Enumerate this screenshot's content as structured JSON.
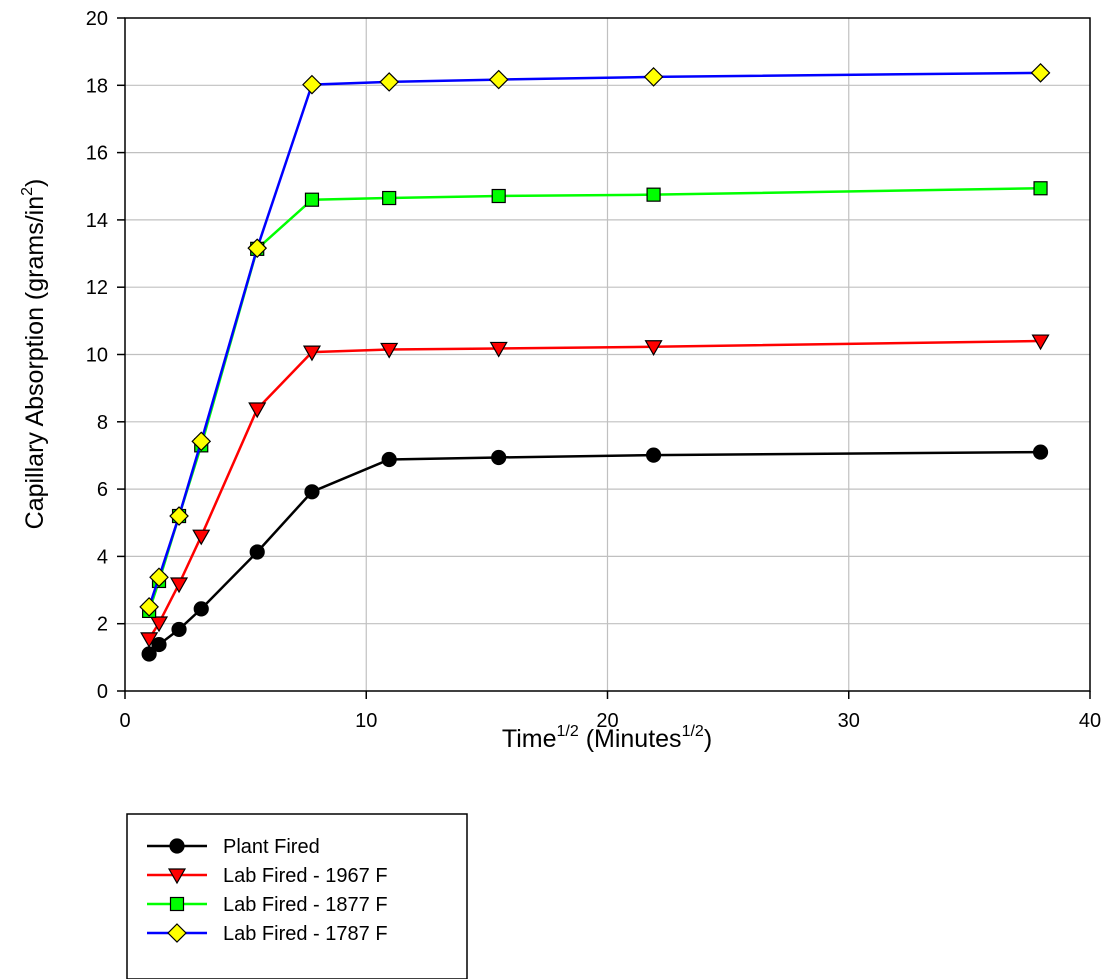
{
  "chart_data": {
    "type": "line",
    "x_axis": {
      "label_base": "Time",
      "label_exp": "1/2",
      "label_mid": " (Minutes",
      "label_exp2": "1/2",
      "label_end": ")",
      "range": [
        0,
        40
      ],
      "ticks": [
        0,
        10,
        20,
        30,
        40
      ],
      "tick_labels": [
        "0",
        "10",
        "20",
        "30",
        "40"
      ]
    },
    "y_axis": {
      "label_base": "Capillary Absorption (grams/in",
      "label_exp": "2",
      "label_end": ")",
      "range": [
        0,
        20
      ],
      "ticks": [
        0,
        2,
        4,
        6,
        8,
        10,
        12,
        14,
        16,
        18,
        20
      ],
      "tick_labels": [
        "0",
        "2",
        "4",
        "6",
        "8",
        "10",
        "12",
        "14",
        "16",
        "18",
        "20"
      ]
    },
    "grid": true,
    "legend_placement": "bottom-left, below plot",
    "series": [
      {
        "name": "Plant Fired",
        "color": "#000000",
        "marker": "circle",
        "marker_fill": "#000000",
        "x": [
          1,
          1.41,
          2.24,
          3.16,
          5.48,
          7.75,
          10.95,
          15.49,
          21.91,
          37.95
        ],
        "y": [
          1.1,
          1.38,
          1.83,
          2.44,
          4.13,
          5.92,
          6.88,
          6.94,
          7.01,
          7.1
        ]
      },
      {
        "name": "Lab Fired - 1967 F",
        "color": "#ff0000",
        "marker": "triangle-down",
        "marker_fill": "#ff0000",
        "x": [
          1,
          1.41,
          2.24,
          3.16,
          5.48,
          7.75,
          10.95,
          15.49,
          21.91,
          37.95
        ],
        "y": [
          1.55,
          2.02,
          3.18,
          4.6,
          8.38,
          10.07,
          10.15,
          10.18,
          10.23,
          10.4
        ]
      },
      {
        "name": "Lab Fired - 1877 F",
        "color": "#00ff00",
        "marker": "square",
        "marker_fill": "#00ff00",
        "x": [
          1,
          1.41,
          2.24,
          3.16,
          5.48,
          7.75,
          10.95,
          15.49,
          21.91,
          37.95
        ],
        "y": [
          2.38,
          3.27,
          5.2,
          7.3,
          13.14,
          14.6,
          14.65,
          14.71,
          14.75,
          14.94
        ]
      },
      {
        "name": "Lab Fired - 1787 F",
        "color": "#0000ff",
        "marker": "diamond",
        "marker_fill": "#ffff00",
        "x": [
          1,
          1.41,
          2.24,
          3.16,
          5.48,
          7.75,
          10.95,
          15.49,
          21.91,
          37.95
        ],
        "y": [
          2.5,
          3.38,
          5.2,
          7.42,
          13.16,
          18.02,
          18.1,
          18.17,
          18.25,
          18.37
        ]
      }
    ]
  }
}
